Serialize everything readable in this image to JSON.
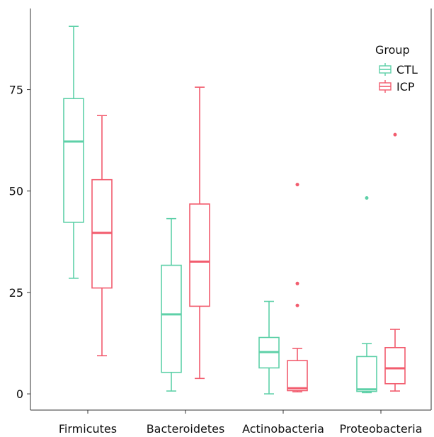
{
  "chart_data": {
    "type": "box",
    "title": "",
    "xlabel": "",
    "ylabel": "",
    "categories": [
      "Firmicutes",
      "Bacteroidetes",
      "Actinobacteria",
      "Proteobacteria"
    ],
    "ylim": [
      -4,
      95
    ],
    "yticks": [
      0,
      25,
      50,
      75
    ],
    "grid": false,
    "legend": {
      "title": "Group",
      "placement": "top-right",
      "entries": [
        "CTL",
        "ICP"
      ]
    },
    "series": [
      {
        "name": "CTL",
        "color": "#5ED0A8",
        "boxes": [
          {
            "whisker_low": 28.5,
            "q1": 42.3,
            "median": 62.2,
            "q3": 72.8,
            "whisker_high": 90.6,
            "outliers": []
          },
          {
            "whisker_low": 0.7,
            "q1": 5.3,
            "median": 19.6,
            "q3": 31.7,
            "whisker_high": 43.2,
            "outliers": []
          },
          {
            "whisker_low": 0.0,
            "q1": 6.4,
            "median": 10.3,
            "q3": 13.9,
            "whisker_high": 22.8,
            "outliers": []
          },
          {
            "whisker_low": 0.3,
            "q1": 0.6,
            "median": 1.1,
            "q3": 9.2,
            "whisker_high": 12.4,
            "outliers": [
              48.3
            ]
          }
        ]
      },
      {
        "name": "ICP",
        "color": "#F25C6E",
        "boxes": [
          {
            "whisker_low": 9.4,
            "q1": 26.1,
            "median": 39.7,
            "q3": 52.8,
            "whisker_high": 68.6,
            "outliers": []
          },
          {
            "whisker_low": 3.8,
            "q1": 21.6,
            "median": 32.6,
            "q3": 46.8,
            "whisker_high": 75.6,
            "outliers": []
          },
          {
            "whisker_low": 0.5,
            "q1": 0.8,
            "median": 1.4,
            "q3": 8.2,
            "whisker_high": 11.2,
            "outliers": [
              51.6,
              27.2,
              21.8
            ]
          },
          {
            "whisker_low": 0.7,
            "q1": 2.5,
            "median": 6.3,
            "q3": 11.4,
            "whisker_high": 15.9,
            "outliers": [
              63.9
            ]
          }
        ]
      }
    ]
  }
}
